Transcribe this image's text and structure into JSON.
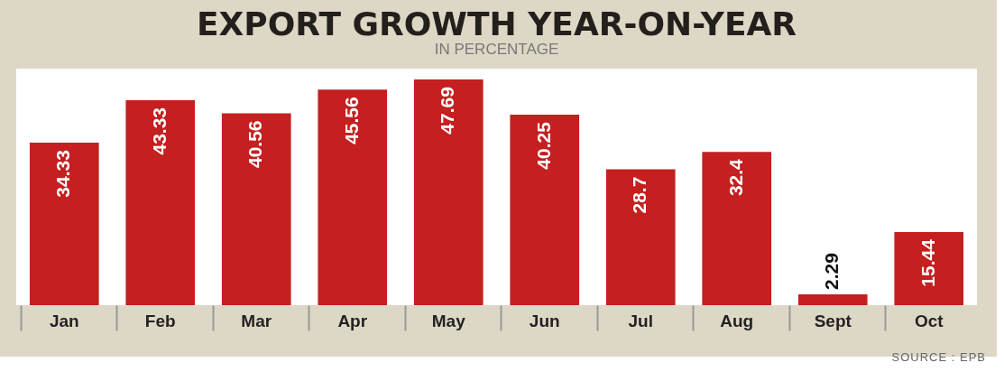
{
  "chart_data": {
    "type": "bar",
    "title": "EXPORT GROWTH YEAR-ON-YEAR",
    "subtitle": "IN PERCENTAGE",
    "categories": [
      "Jan",
      "Feb",
      "Mar",
      "Apr",
      "May",
      "Jun",
      "Jul",
      "Aug",
      "Sept",
      "Oct"
    ],
    "values": [
      34.33,
      43.33,
      40.56,
      45.56,
      47.69,
      40.25,
      28.7,
      32.4,
      2.29,
      15.44
    ],
    "color": "#c3201f",
    "data_labels": true,
    "annotations": [
      "SOURCE : EPB"
    ]
  }
}
